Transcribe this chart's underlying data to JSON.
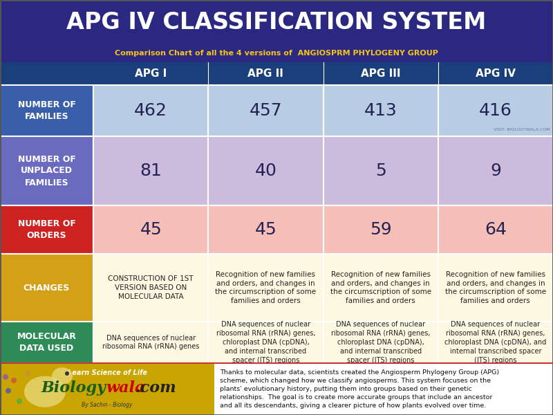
{
  "title": "APG IV CLASSIFICATION SYSTEM",
  "subtitle": "Comparison Chart of all the 4 versions of  ANGIOSPRM PHYLOGENY GROUP",
  "title_bg": "#2b2882",
  "title_color": "#ffffff",
  "subtitle_color": "#f5c518",
  "header_bg": "#1a3f7a",
  "header_color": "#ffffff",
  "columns": [
    "APG I",
    "APG II",
    "APG III",
    "APG IV"
  ],
  "rows": [
    {
      "label": "NUMBER OF\nFAMILIES",
      "label_bg": "#3a5faa",
      "data_bg": "#b8cce4",
      "values": [
        "462",
        "457",
        "413",
        "416"
      ],
      "value_color": "#222255",
      "font_size": 18,
      "font_weight": "normal",
      "extra_label": "VISIT: BIOLOGYWALA.COM",
      "extra_col": 3
    },
    {
      "label": "NUMBER OF\nUNPLACED\nFAMILIES",
      "label_bg": "#6a6abf",
      "data_bg": "#ccbbdd",
      "values": [
        "81",
        "40",
        "5",
        "9"
      ],
      "value_color": "#222255",
      "font_size": 18,
      "font_weight": "normal",
      "extra_label": "",
      "extra_col": -1
    },
    {
      "label": "NUMBER OF\nORDERS",
      "label_bg": "#cc2222",
      "data_bg": "#f5bfb8",
      "values": [
        "45",
        "45",
        "59",
        "64"
      ],
      "value_color": "#222255",
      "font_size": 18,
      "font_weight": "normal",
      "extra_label": "",
      "extra_col": -1
    },
    {
      "label": "CHANGES",
      "label_bg": "#d4a017",
      "data_bg": "#fdf8e1",
      "values": [
        "CONSTRUCTION OF 1ST\nVERSION BASED ON\nMOLECULAR DATA",
        "Recognition of new families\nand orders, and changes in\nthe circumscription of some\nfamilies and orders",
        "Recognition of new families\nand orders, and changes in\nthe circumscription of some\nfamilies and orders",
        "Recognition of new families\nand orders, and changes in\nthe circumscription of some\nfamilies and orders"
      ],
      "value_color": "#222222",
      "font_size": 7.5,
      "font_weight": "normal",
      "extra_label": "",
      "extra_col": -1
    },
    {
      "label": "MOLECULAR\nDATA USED",
      "label_bg": "#2e8b57",
      "data_bg": "#fdf8e1",
      "values": [
        "DNA sequences of nuclear\nribosomal RNA (rRNA) genes",
        "DNA sequences of nuclear\nribosomal RNA (rRNA) genes,\nchloroplast DNA (cpDNA),\nand internal transcribed\nspacer (ITS) regions",
        "DNA sequences of nuclear\nribosomal RNA (rRNA) genes,\nchloroplast DNA (cpDNA),\nand internal transcribed\nspacer (ITS) regions",
        "DNA sequences of nuclear\nribosomal RNA (rRNA) genes,\nchloroplast DNA (cpDNA), and\ninternal transcribed spacer\n(ITS) regions"
      ],
      "value_color": "#222222",
      "font_size": 7.0,
      "font_weight": "normal",
      "extra_label": "",
      "extra_col": -1
    }
  ],
  "footer_logo_bg": "#c8a500",
  "footer_white_bg": "#ffffff",
  "footer_text": "Thanks to molecular data, scientists created the Angiosperm Phylogeny Group (APG) scheme, which changed how we classify angiosperms. This system focuses on the plants' evolutionary history, putting them into groups based on their genetic relationships.  The goal is to create more accurate groups that include an ancestor and all its descendants, giving a clearer picture of how plants evolved over time.",
  "footer_text_color": "#111111",
  "logo_learn": "Learn Science of Life",
  "logo_biology_color": "#1a5c1a",
  "logo_wala_color": "#cc0000",
  "logo_com_color": "#222222",
  "logo_by": "By Sachin - Biology"
}
